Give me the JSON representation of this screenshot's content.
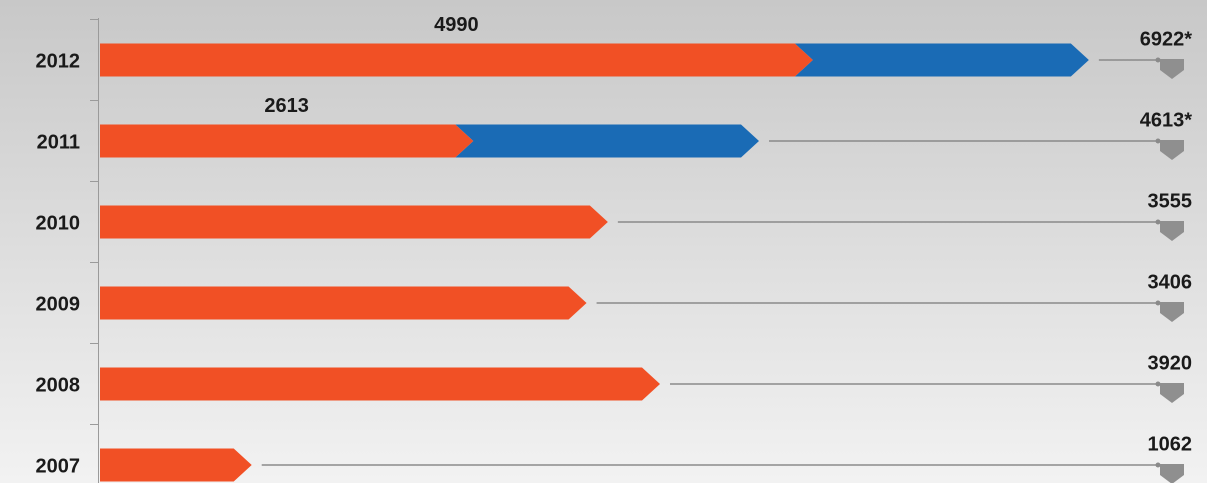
{
  "chart_data": {
    "type": "stacked-arrow-bar",
    "categories": [
      "2012",
      "2011",
      "2010",
      "2009",
      "2008",
      "2007"
    ],
    "series": [
      {
        "color": "#f15025",
        "values": [
          4990,
          2613,
          3555,
          3406,
          3920,
          1062
        ]
      },
      {
        "color": "#1a6bb5",
        "values": [
          1932,
          2000,
          null,
          null,
          null,
          null
        ]
      }
    ],
    "totals": {
      "values": [
        6922,
        4613,
        3555,
        3406,
        3920,
        1062
      ],
      "value_labels": [
        "6922*",
        "4613*",
        null,
        null,
        null,
        null
      ]
    },
    "marker_color": "#8f8f8f",
    "xlim": [
      0,
      7000
    ]
  }
}
